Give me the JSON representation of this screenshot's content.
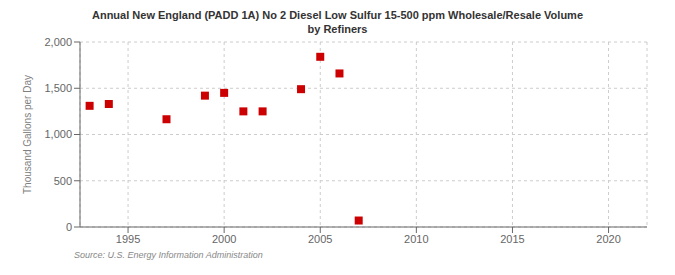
{
  "chart_data": {
    "type": "scatter",
    "title": "Annual New England (PADD 1A) No 2 Diesel Low Sulfur 15-500 ppm Wholesale/Resale Volume\nby Refiners",
    "y_label": "Thousand Gallons per Day",
    "annotations": [
      "Source: U.S. Energy Information Administration"
    ],
    "x": [
      1993,
      1994,
      1997,
      1999,
      2000,
      2001,
      2002,
      2004,
      2005,
      2006,
      2007
    ],
    "values": [
      1310,
      1330,
      1165,
      1420,
      1450,
      1250,
      1250,
      1490,
      1840,
      1660,
      70
    ],
    "color": "#cc0000",
    "marker": "square",
    "xlim": [
      1992.5,
      2022
    ],
    "xticks": [
      1995,
      2000,
      2005,
      2010,
      2015,
      2020
    ],
    "ylim": [
      0,
      2000
    ],
    "yticks": [
      0,
      500,
      {
        "value": 1000,
        "label": "1,000"
      },
      {
        "value": 1500,
        "label": "1,500"
      },
      {
        "value": 2000,
        "label": "2,000"
      }
    ],
    "grid": true
  }
}
